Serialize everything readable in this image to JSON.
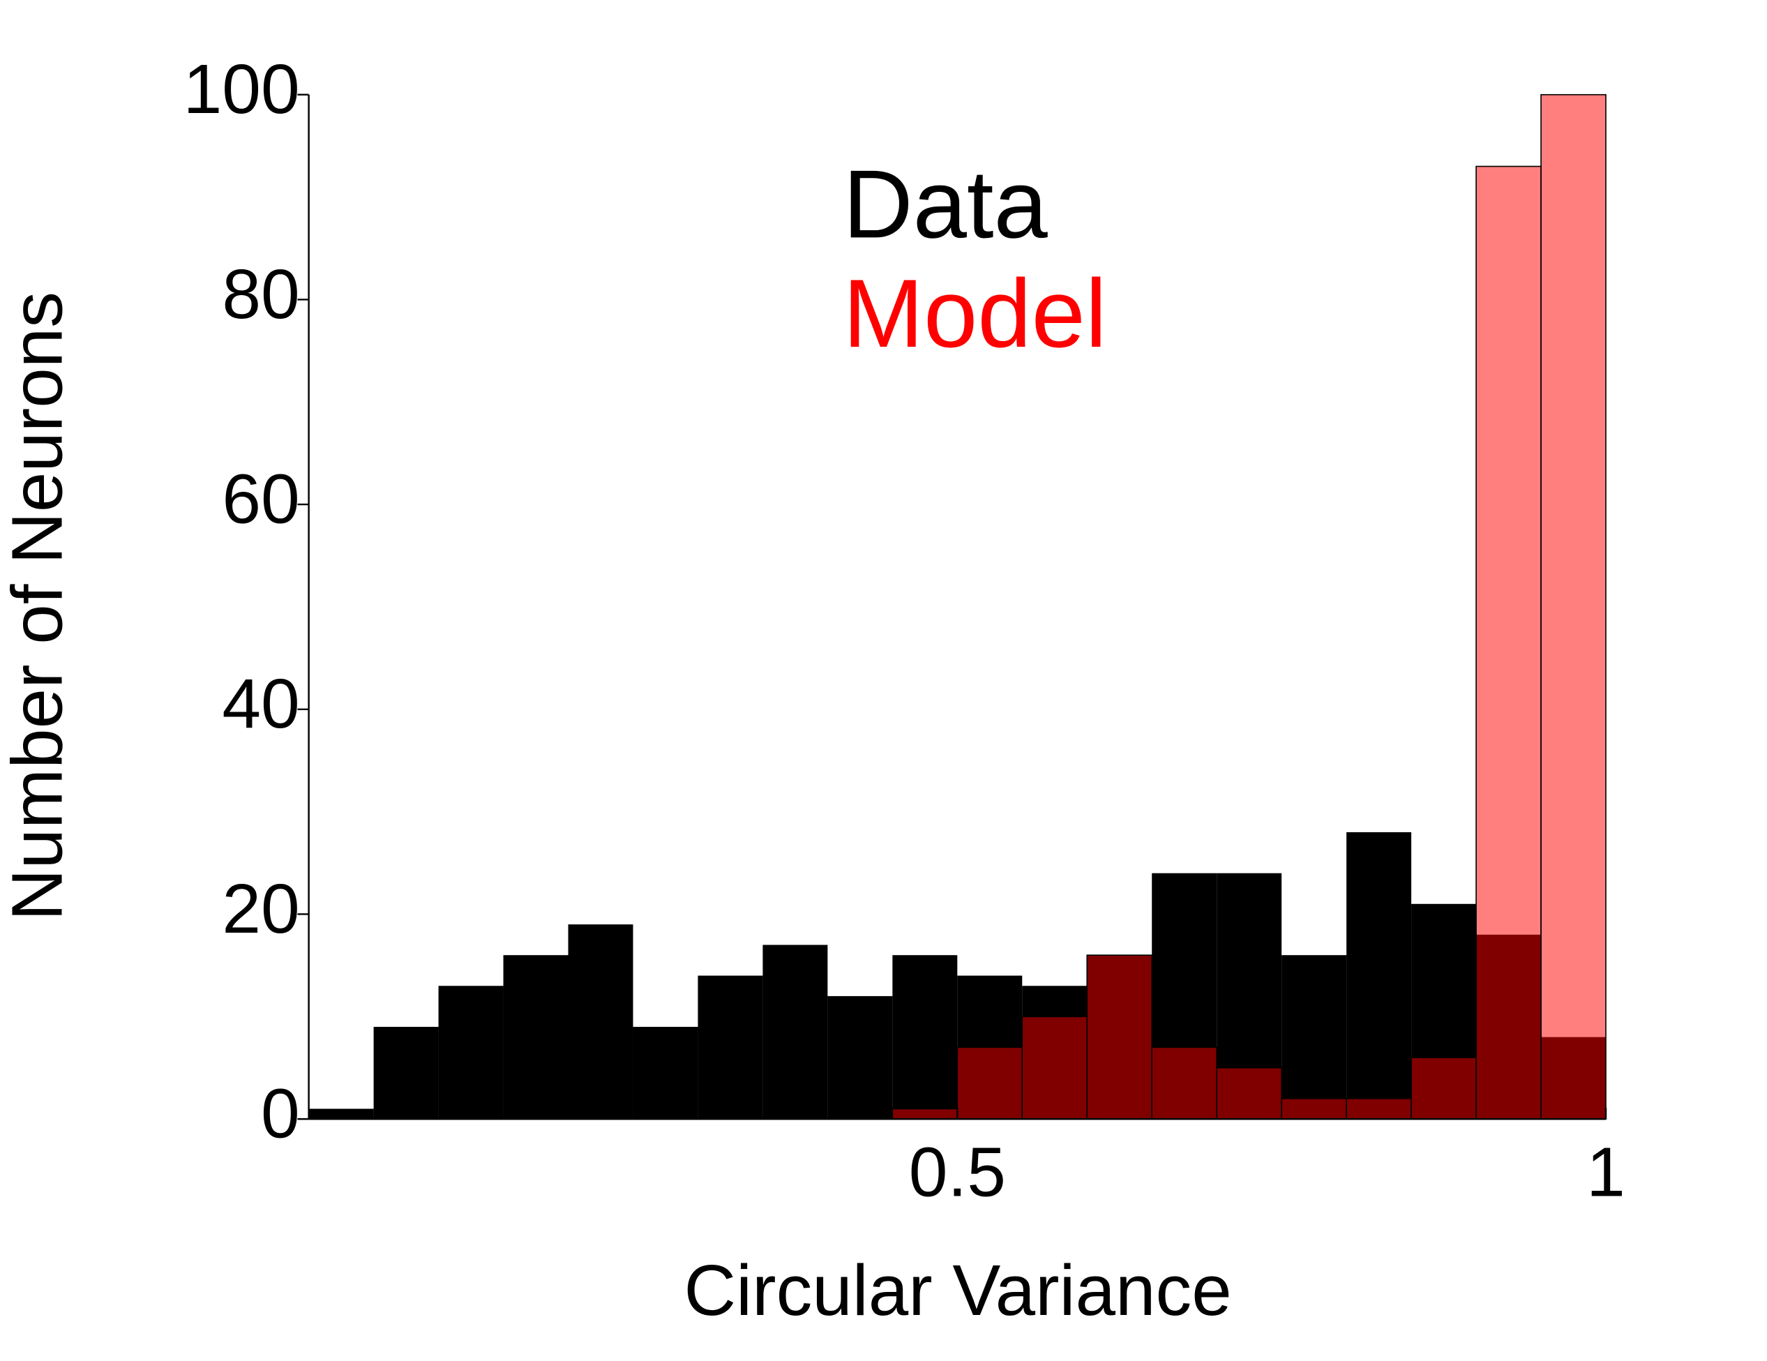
{
  "chart_data": {
    "type": "histogram",
    "xlabel": "Circular Variance",
    "ylabel": "Number of Neurons",
    "bins": [
      0,
      0.05,
      0.1,
      0.15,
      0.2,
      0.25,
      0.3,
      0.35,
      0.4,
      0.45,
      0.5,
      0.55,
      0.6,
      0.65,
      0.7,
      0.75,
      0.8,
      0.85,
      0.9,
      0.95,
      1
    ],
    "series": [
      {
        "name": "Data",
        "color": "#000000",
        "values": [
          1,
          9,
          13,
          16,
          19,
          9,
          14,
          17,
          12,
          16,
          14,
          13,
          16,
          24,
          24,
          16,
          28,
          21,
          18,
          8
        ]
      },
      {
        "name": "Model",
        "color": "#ff0000",
        "values": [
          0,
          0,
          0,
          0,
          0,
          0,
          0,
          0,
          0,
          1,
          7,
          10,
          16,
          7,
          5,
          2,
          2,
          6,
          93,
          100
        ]
      }
    ],
    "xlim": [
      0,
      1
    ],
    "ylim": [
      0,
      100
    ],
    "xticks": [
      0.5,
      1
    ],
    "yticks": [
      0,
      20,
      40,
      60,
      80,
      100
    ]
  }
}
